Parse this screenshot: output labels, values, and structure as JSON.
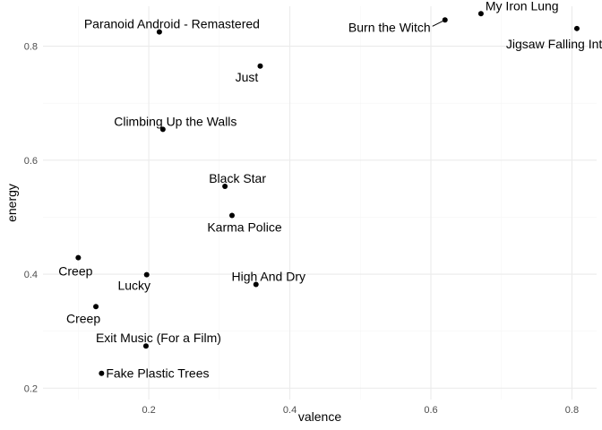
{
  "chart_data": {
    "type": "scatter",
    "title": "",
    "xlabel": "valence",
    "ylabel": "energy",
    "xlim": [
      0.05,
      0.835
    ],
    "ylim": [
      0.18,
      0.87
    ],
    "xticks": [
      0.2,
      0.4,
      0.6,
      0.8
    ],
    "yticks": [
      0.2,
      0.4,
      0.6,
      0.8
    ],
    "x_tick_labels": [
      "0.2",
      "0.4",
      "0.6",
      "0.8"
    ],
    "y_tick_labels": [
      "0.2",
      "0.4",
      "0.6",
      "0.8"
    ],
    "grid": true,
    "legend": "none",
    "colors": {
      "point": "#000000",
      "grid_major": "#ebebeb",
      "grid_minor": "#f5f5f5",
      "background": "#ffffff"
    },
    "points": [
      {
        "label": "My Iron Lung",
        "x": 0.671,
        "y": 0.857
      },
      {
        "label": "Burn the Witch",
        "x": 0.62,
        "y": 0.846
      },
      {
        "label": "Jigsaw Falling Into Place",
        "x": 0.807,
        "y": 0.831
      },
      {
        "label": "Paranoid Android - Remastered",
        "x": 0.215,
        "y": 0.825
      },
      {
        "label": "Just",
        "x": 0.358,
        "y": 0.765
      },
      {
        "label": "Climbing Up the Walls",
        "x": 0.22,
        "y": 0.654
      },
      {
        "label": "Black Star",
        "x": 0.308,
        "y": 0.554
      },
      {
        "label": "Karma Police",
        "x": 0.318,
        "y": 0.503
      },
      {
        "label": "Creep",
        "x": 0.1,
        "y": 0.429
      },
      {
        "label": "Lucky",
        "x": 0.197,
        "y": 0.399
      },
      {
        "label": "High And Dry",
        "x": 0.352,
        "y": 0.382
      },
      {
        "label": "Creep",
        "x": 0.125,
        "y": 0.343
      },
      {
        "label": "Exit Music (For a Film)",
        "x": 0.196,
        "y": 0.274
      },
      {
        "label": "Fake Plastic Trees",
        "x": 0.133,
        "y": 0.226
      }
    ]
  }
}
